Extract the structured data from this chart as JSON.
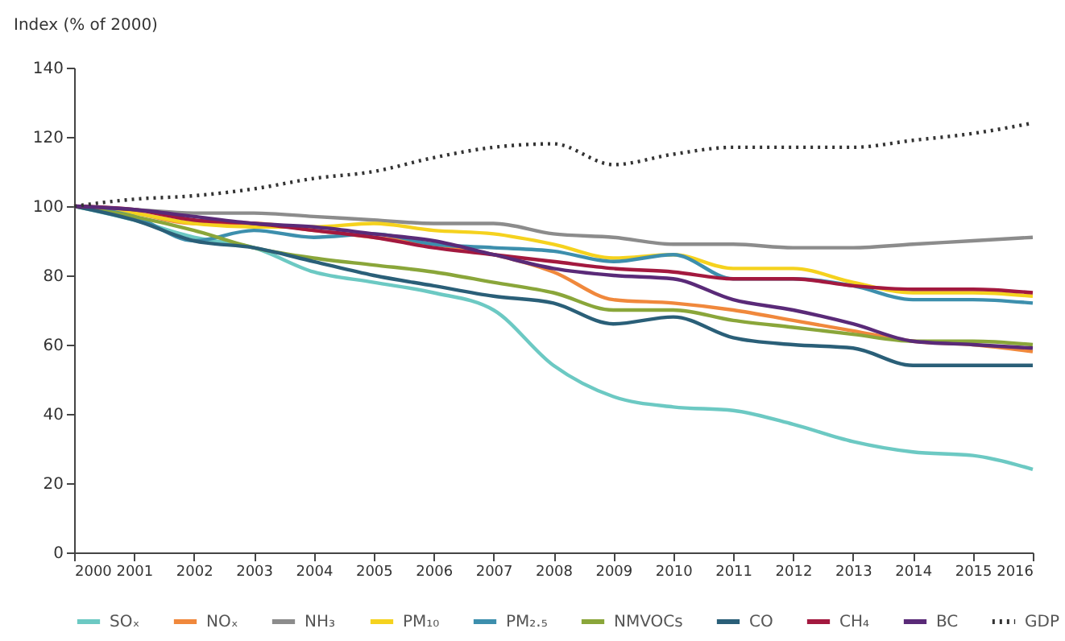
{
  "chart_data": {
    "type": "line",
    "ylabel": "Index (% of 2000)",
    "x": [
      2000,
      2001,
      2002,
      2003,
      2004,
      2005,
      2006,
      2007,
      2008,
      2009,
      2010,
      2011,
      2012,
      2013,
      2014,
      2015,
      2016
    ],
    "xlim": [
      2000,
      2016
    ],
    "xticks": [
      2000,
      2001,
      2002,
      2003,
      2004,
      2005,
      2006,
      2007,
      2008,
      2009,
      2010,
      2011,
      2012,
      2013,
      2014,
      2015,
      2016
    ],
    "ylim": [
      0,
      140
    ],
    "yticks": [
      0,
      20,
      40,
      60,
      80,
      100,
      120,
      140
    ],
    "grid": false,
    "legend": "bottom",
    "marker": "none",
    "series": [
      {
        "name": "SOₓ",
        "color": "#6cc9c3",
        "values": [
          100,
          96,
          91,
          88,
          81,
          78,
          75,
          70,
          54,
          45,
          42,
          41,
          37,
          32,
          29,
          28,
          24
        ]
      },
      {
        "name": "NOₓ",
        "color": "#f0883c",
        "values": [
          100,
          98,
          95,
          95,
          93,
          91,
          89,
          86,
          81,
          73,
          72,
          70,
          67,
          64,
          61,
          60,
          58
        ]
      },
      {
        "name": "NH₃",
        "color": "#8c8c8c",
        "values": [
          100,
          99,
          98,
          98,
          97,
          96,
          95,
          95,
          92,
          91,
          89,
          89,
          88,
          88,
          89,
          90,
          91
        ]
      },
      {
        "name": "PM₁₀",
        "color": "#f5d21e",
        "values": [
          100,
          98,
          95,
          94,
          94,
          95,
          93,
          92,
          89,
          85,
          86,
          82,
          82,
          78,
          75,
          75,
          74
        ]
      },
      {
        "name": "PM₂.₅",
        "color": "#3d8fad",
        "values": [
          100,
          97,
          90,
          93,
          91,
          92,
          89,
          88,
          87,
          84,
          86,
          79,
          79,
          77,
          73,
          73,
          72
        ]
      },
      {
        "name": "NMVOCs",
        "color": "#8aa63a",
        "values": [
          100,
          97,
          93,
          88,
          85,
          83,
          81,
          78,
          75,
          70,
          70,
          67,
          65,
          63,
          61,
          61,
          60
        ]
      },
      {
        "name": "CO",
        "color": "#2a5f78",
        "values": [
          100,
          96,
          90,
          88,
          84,
          80,
          77,
          74,
          72,
          66,
          68,
          62,
          60,
          59,
          54,
          54,
          54
        ]
      },
      {
        "name": "CH₄",
        "color": "#a3193f",
        "values": [
          100,
          99,
          96,
          95,
          93,
          91,
          88,
          86,
          84,
          82,
          81,
          79,
          79,
          77,
          76,
          76,
          75
        ]
      },
      {
        "name": "BC",
        "color": "#5a2a78",
        "values": [
          100,
          99,
          97,
          95,
          94,
          92,
          90,
          86,
          82,
          80,
          79,
          73,
          70,
          66,
          61,
          60,
          59
        ]
      },
      {
        "name": "GDP",
        "color": "#333333",
        "line_style": "dotted",
        "values": [
          100,
          102,
          103,
          105,
          108,
          110,
          114,
          117,
          118,
          112,
          115,
          117,
          117,
          117,
          119,
          121,
          124
        ]
      }
    ]
  }
}
